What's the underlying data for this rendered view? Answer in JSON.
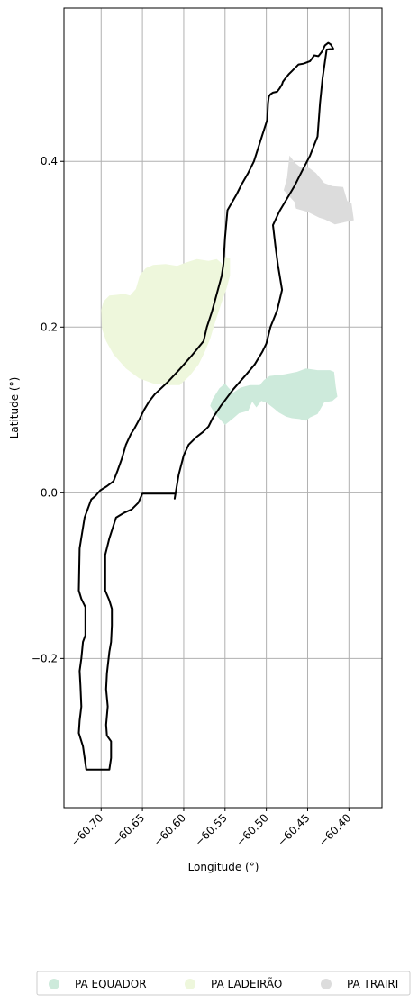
{
  "chart_data": {
    "type": "map",
    "xlabel": "Longitude (°)",
    "ylabel": "Latitude (°)",
    "xlim": [
      -60.745,
      -60.36
    ],
    "ylim": [
      -0.38,
      0.585
    ],
    "grid": true,
    "xticks": [
      {
        "value": -60.7,
        "label": "−60.70"
      },
      {
        "value": -60.65,
        "label": "−60.65"
      },
      {
        "value": -60.6,
        "label": "−60.60"
      },
      {
        "value": -60.55,
        "label": "−60.55"
      },
      {
        "value": -60.5,
        "label": "−60.50"
      },
      {
        "value": -60.45,
        "label": "−60.45"
      },
      {
        "value": -60.4,
        "label": "−60.40"
      }
    ],
    "yticks": [
      {
        "value": 0.4,
        "label": "0.4"
      },
      {
        "value": 0.2,
        "label": "0.2"
      },
      {
        "value": 0.0,
        "label": "0.0"
      },
      {
        "value": -0.2,
        "label": "−0.2"
      }
    ],
    "outline": {
      "color": "#000000",
      "points": [
        [
          -60.718,
          -0.334
        ],
        [
          -60.69,
          -0.334
        ],
        [
          -60.688,
          -0.32
        ],
        [
          -60.688,
          -0.3
        ],
        [
          -60.693,
          -0.293
        ],
        [
          -60.694,
          -0.28
        ],
        [
          -60.692,
          -0.258
        ],
        [
          -60.694,
          -0.237
        ],
        [
          -60.693,
          -0.218
        ],
        [
          -60.69,
          -0.192
        ],
        [
          -60.688,
          -0.18
        ],
        [
          -60.687,
          -0.16
        ],
        [
          -60.687,
          -0.14
        ],
        [
          -60.69,
          -0.13
        ],
        [
          -60.695,
          -0.118
        ],
        [
          -60.695,
          -0.075
        ],
        [
          -60.69,
          -0.055
        ],
        [
          -60.682,
          -0.03
        ],
        [
          -60.672,
          -0.024
        ],
        [
          -60.663,
          -0.02
        ],
        [
          -60.655,
          -0.012
        ],
        [
          -60.65,
          -0.001
        ],
        [
          -60.628,
          -0.001
        ],
        [
          -60.61,
          -0.001
        ],
        [
          -60.611,
          -0.007
        ],
        [
          -60.606,
          0.022
        ],
        [
          -60.6,
          0.045
        ],
        [
          -60.594,
          0.058
        ],
        [
          -60.585,
          0.067
        ],
        [
          -60.577,
          0.073
        ],
        [
          -60.57,
          0.08
        ],
        [
          -60.565,
          0.09
        ],
        [
          -60.555,
          0.105
        ],
        [
          -60.54,
          0.125
        ],
        [
          -60.525,
          0.142
        ],
        [
          -60.514,
          0.155
        ],
        [
          -60.505,
          0.17
        ],
        [
          -60.5,
          0.18
        ],
        [
          -60.495,
          0.2
        ],
        [
          -60.487,
          0.22
        ],
        [
          -60.481,
          0.245
        ],
        [
          -60.486,
          0.275
        ],
        [
          -60.489,
          0.298
        ],
        [
          -60.492,
          0.323
        ],
        [
          -60.484,
          0.34
        ],
        [
          -60.475,
          0.355
        ],
        [
          -60.466,
          0.37
        ],
        [
          -60.457,
          0.388
        ],
        [
          -60.447,
          0.407
        ],
        [
          -60.438,
          0.43
        ],
        [
          -60.435,
          0.47
        ],
        [
          -60.432,
          0.5
        ],
        [
          -60.427,
          0.535
        ],
        [
          -60.419,
          0.536
        ],
        [
          -60.422,
          0.541
        ],
        [
          -60.425,
          0.543
        ],
        [
          -60.429,
          0.54
        ],
        [
          -60.433,
          0.532
        ],
        [
          -60.437,
          0.527
        ],
        [
          -60.442,
          0.528
        ],
        [
          -60.447,
          0.521
        ],
        [
          -60.455,
          0.518
        ],
        [
          -60.461,
          0.517
        ],
        [
          -60.466,
          0.512
        ],
        [
          -60.47,
          0.508
        ],
        [
          -60.473,
          0.505
        ],
        [
          -60.477,
          0.5
        ],
        [
          -60.48,
          0.496
        ],
        [
          -60.481,
          0.493
        ],
        [
          -60.484,
          0.488
        ],
        [
          -60.487,
          0.484
        ],
        [
          -60.492,
          0.483
        ],
        [
          -60.495,
          0.481
        ],
        [
          -60.497,
          0.478
        ],
        [
          -60.498,
          0.47
        ],
        [
          -60.499,
          0.45
        ],
        [
          -60.507,
          0.425
        ],
        [
          -60.515,
          0.4
        ],
        [
          -60.522,
          0.386
        ],
        [
          -60.53,
          0.372
        ],
        [
          -60.536,
          0.36
        ],
        [
          -60.547,
          0.341
        ],
        [
          -60.55,
          0.308
        ],
        [
          -60.552,
          0.276
        ],
        [
          -60.554,
          0.262
        ],
        [
          -60.56,
          0.24
        ],
        [
          -60.566,
          0.218
        ],
        [
          -60.572,
          0.2
        ],
        [
          -60.576,
          0.183
        ],
        [
          -60.59,
          0.166
        ],
        [
          -60.605,
          0.149
        ],
        [
          -60.62,
          0.133
        ],
        [
          -60.635,
          0.119
        ],
        [
          -60.642,
          0.11
        ],
        [
          -60.648,
          0.1
        ],
        [
          -60.654,
          0.088
        ],
        [
          -60.66,
          0.077
        ],
        [
          -60.664,
          0.071
        ],
        [
          -60.67,
          0.058
        ],
        [
          -60.675,
          0.041
        ],
        [
          -60.68,
          0.027
        ],
        [
          -60.685,
          0.014
        ],
        [
          -60.693,
          0.008
        ],
        [
          -60.701,
          0.003
        ],
        [
          -60.707,
          -0.004
        ],
        [
          -60.712,
          -0.008
        ],
        [
          -60.72,
          -0.03
        ],
        [
          -60.726,
          -0.067
        ],
        [
          -60.727,
          -0.118
        ],
        [
          -60.724,
          -0.128
        ],
        [
          -60.719,
          -0.138
        ],
        [
          -60.719,
          -0.172
        ],
        [
          -60.722,
          -0.18
        ],
        [
          -60.724,
          -0.2
        ],
        [
          -60.726,
          -0.215
        ],
        [
          -60.725,
          -0.233
        ],
        [
          -60.724,
          -0.258
        ],
        [
          -60.726,
          -0.275
        ],
        [
          -60.727,
          -0.29
        ],
        [
          -60.722,
          -0.306
        ],
        [
          -60.718,
          -0.334
        ]
      ]
    },
    "areas": [
      {
        "name": "PA EQUADOR",
        "color": "#cdeadb",
        "points": [
          [
            -60.568,
            0.105
          ],
          [
            -60.565,
            0.113
          ],
          [
            -60.557,
            0.126
          ],
          [
            -60.55,
            0.132
          ],
          [
            -60.546,
            0.127
          ],
          [
            -60.54,
            0.121
          ],
          [
            -60.531,
            0.127
          ],
          [
            -60.52,
            0.13
          ],
          [
            -60.508,
            0.13
          ],
          [
            -60.503,
            0.136
          ],
          [
            -60.496,
            0.141
          ],
          [
            -60.478,
            0.143
          ],
          [
            -60.463,
            0.146
          ],
          [
            -60.452,
            0.15
          ],
          [
            -60.438,
            0.148
          ],
          [
            -60.423,
            0.148
          ],
          [
            -60.418,
            0.146
          ],
          [
            -60.416,
            0.128
          ],
          [
            -60.414,
            0.116
          ],
          [
            -60.42,
            0.111
          ],
          [
            -60.43,
            0.109
          ],
          [
            -60.438,
            0.095
          ],
          [
            -60.447,
            0.091
          ],
          [
            -60.452,
            0.087
          ],
          [
            -60.46,
            0.089
          ],
          [
            -60.469,
            0.09
          ],
          [
            -60.476,
            0.092
          ],
          [
            -60.485,
            0.097
          ],
          [
            -60.491,
            0.102
          ],
          [
            -60.499,
            0.108
          ],
          [
            -60.506,
            0.111
          ],
          [
            -60.512,
            0.103
          ],
          [
            -60.517,
            0.11
          ],
          [
            -60.522,
            0.099
          ],
          [
            -60.533,
            0.096
          ],
          [
            -60.54,
            0.09
          ],
          [
            -60.55,
            0.082
          ],
          [
            -60.562,
            0.095
          ],
          [
            -60.568,
            0.105
          ]
        ]
      },
      {
        "name": "PA LADEIRÃO",
        "color": "#eef7dc",
        "points": [
          [
            -60.7,
            0.221
          ],
          [
            -60.697,
            0.231
          ],
          [
            -60.69,
            0.238
          ],
          [
            -60.672,
            0.24
          ],
          [
            -60.665,
            0.238
          ],
          [
            -60.658,
            0.246
          ],
          [
            -60.653,
            0.263
          ],
          [
            -60.646,
            0.271
          ],
          [
            -60.637,
            0.275
          ],
          [
            -60.622,
            0.276
          ],
          [
            -60.608,
            0.274
          ],
          [
            -60.597,
            0.278
          ],
          [
            -60.584,
            0.282
          ],
          [
            -60.57,
            0.28
          ],
          [
            -60.56,
            0.282
          ],
          [
            -60.553,
            0.276
          ],
          [
            -60.55,
            0.285
          ],
          [
            -60.544,
            0.283
          ],
          [
            -60.544,
            0.262
          ],
          [
            -60.548,
            0.247
          ],
          [
            -60.555,
            0.227
          ],
          [
            -60.562,
            0.206
          ],
          [
            -60.568,
            0.186
          ],
          [
            -60.575,
            0.169
          ],
          [
            -60.582,
            0.155
          ],
          [
            -60.593,
            0.141
          ],
          [
            -60.605,
            0.13
          ],
          [
            -60.62,
            0.13
          ],
          [
            -60.637,
            0.132
          ],
          [
            -60.654,
            0.138
          ],
          [
            -60.67,
            0.15
          ],
          [
            -60.685,
            0.167
          ],
          [
            -60.694,
            0.183
          ],
          [
            -60.699,
            0.198
          ],
          [
            -60.7,
            0.221
          ]
        ]
      },
      {
        "name": "PA TRAIRI",
        "color": "#dcdcdc",
        "points": [
          [
            -60.472,
            0.407
          ],
          [
            -60.465,
            0.398
          ],
          [
            -60.46,
            0.394
          ],
          [
            -60.448,
            0.392
          ],
          [
            -60.44,
            0.386
          ],
          [
            -60.43,
            0.374
          ],
          [
            -60.42,
            0.37
          ],
          [
            -60.407,
            0.369
          ],
          [
            -60.402,
            0.352
          ],
          [
            -60.397,
            0.35
          ],
          [
            -60.394,
            0.329
          ],
          [
            -60.417,
            0.324
          ],
          [
            -60.429,
            0.33
          ],
          [
            -60.436,
            0.332
          ],
          [
            -60.45,
            0.339
          ],
          [
            -60.464,
            0.343
          ],
          [
            -60.466,
            0.351
          ],
          [
            -60.479,
            0.365
          ],
          [
            -60.475,
            0.38
          ],
          [
            -60.472,
            0.407
          ]
        ]
      }
    ],
    "legend": {
      "placement": "bottom",
      "entries": [
        {
          "label": "PA EQUADOR",
          "color": "#cdeadb"
        },
        {
          "label": "PA LADEIRÃO",
          "color": "#eef7dc"
        },
        {
          "label": "PA TRAIRI",
          "color": "#dcdcdc"
        }
      ]
    }
  }
}
